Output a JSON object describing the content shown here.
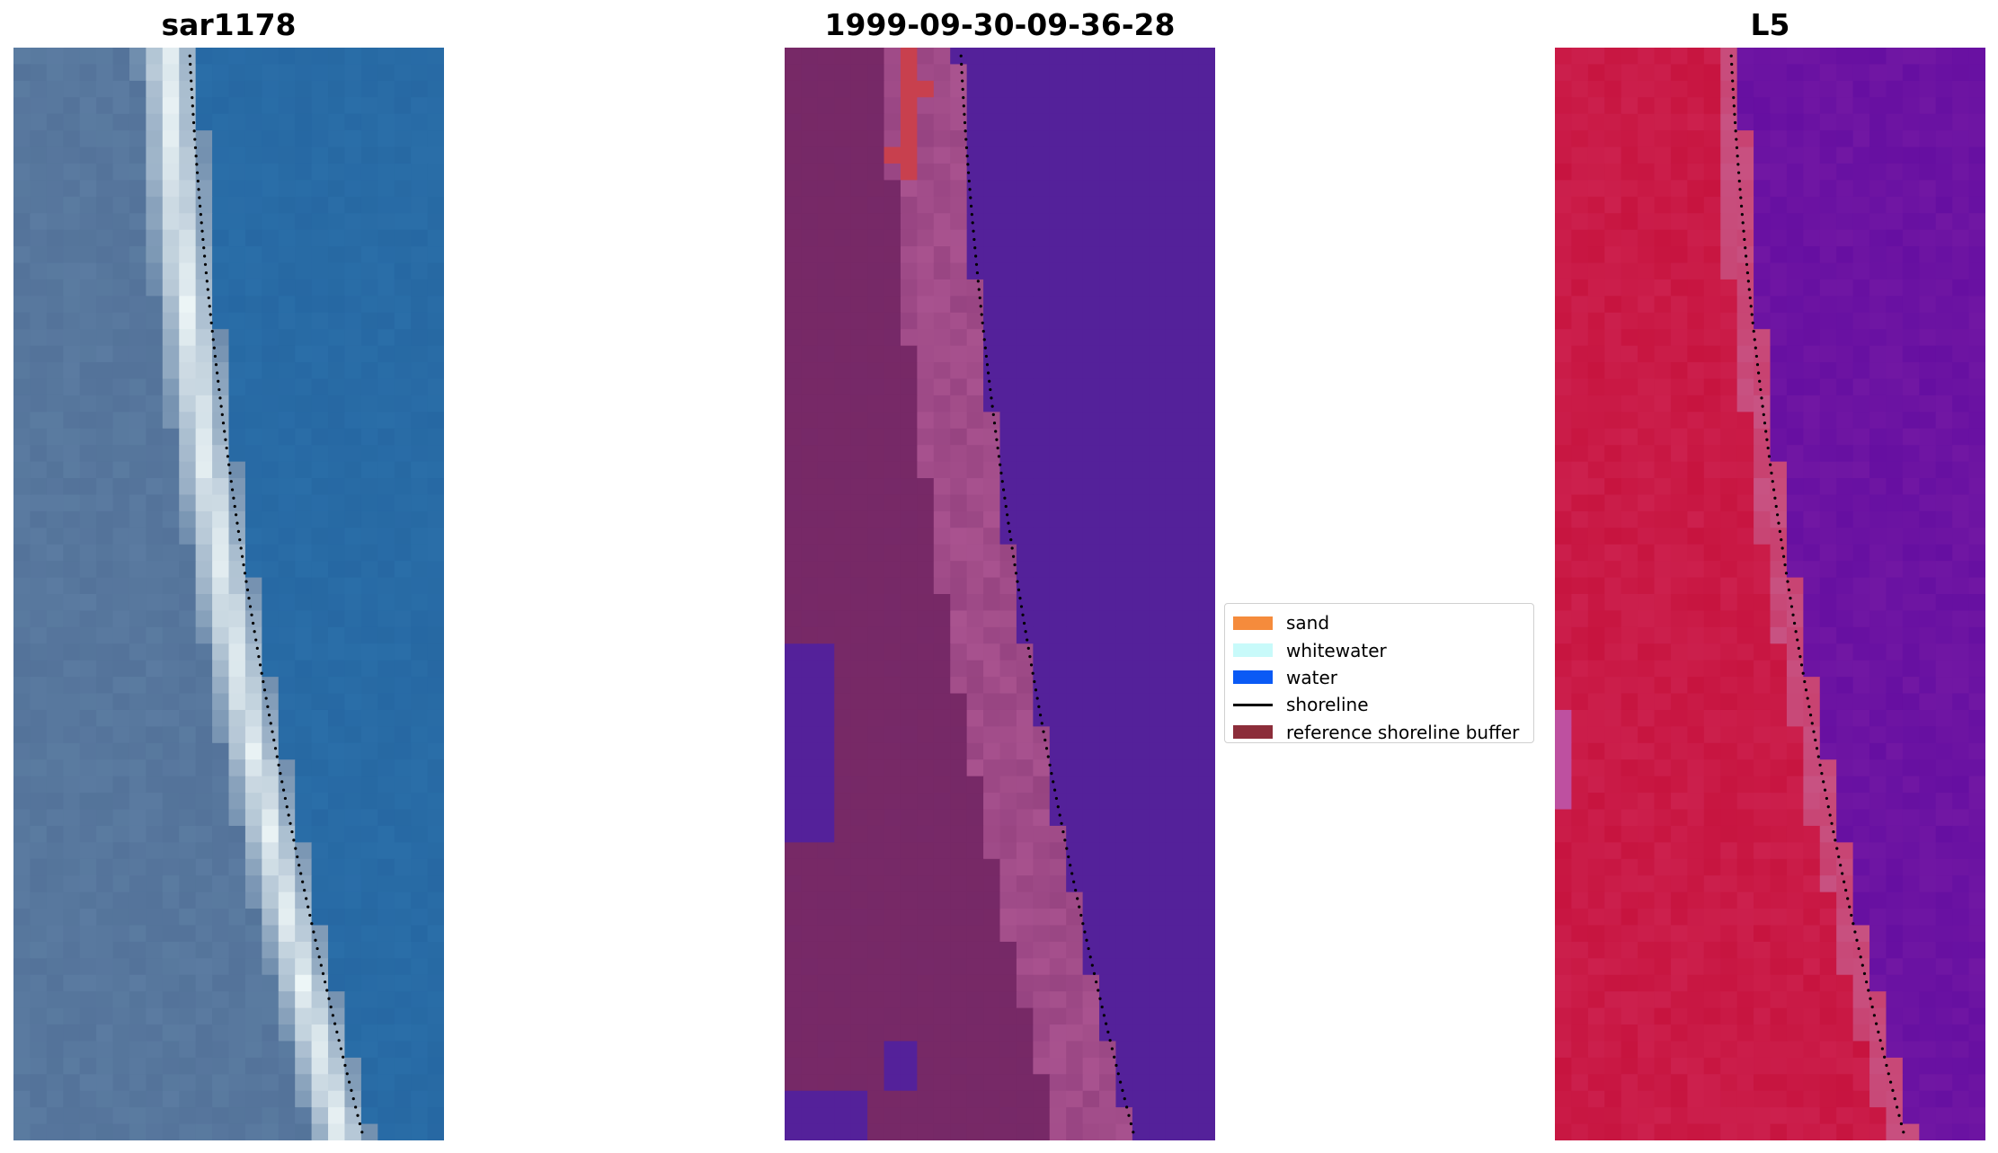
{
  "panels": [
    {
      "title": "sar1178",
      "kind": "rgb-image"
    },
    {
      "title": "1999-09-30-09-36-28",
      "kind": "classification"
    },
    {
      "title": "L5",
      "kind": "mndwi-image"
    }
  ],
  "legend": {
    "items": [
      {
        "label": "sand",
        "type": "patch",
        "color": "#f58b3c"
      },
      {
        "label": "whitewater",
        "type": "patch",
        "color": "#c8fafa"
      },
      {
        "label": "water",
        "type": "patch",
        "color": "#0a5af5"
      },
      {
        "label": "shoreline",
        "type": "line",
        "color": "#000000"
      },
      {
        "label": "reference shoreline buffer",
        "type": "patch",
        "color": "#8c2d3a"
      }
    ]
  },
  "colors": {
    "rgb_water": "#2a6ea8",
    "rgb_land": "#5c7da2",
    "rgb_surf": "#e9f2f4",
    "class_water": "#54219a",
    "class_buffer": "#762968",
    "class_sand_buffer": "#b25a96",
    "class_sand": "#c8404e",
    "index_land": "#c7143f",
    "index_water": "#7117a3",
    "shoreline": "#000000"
  }
}
